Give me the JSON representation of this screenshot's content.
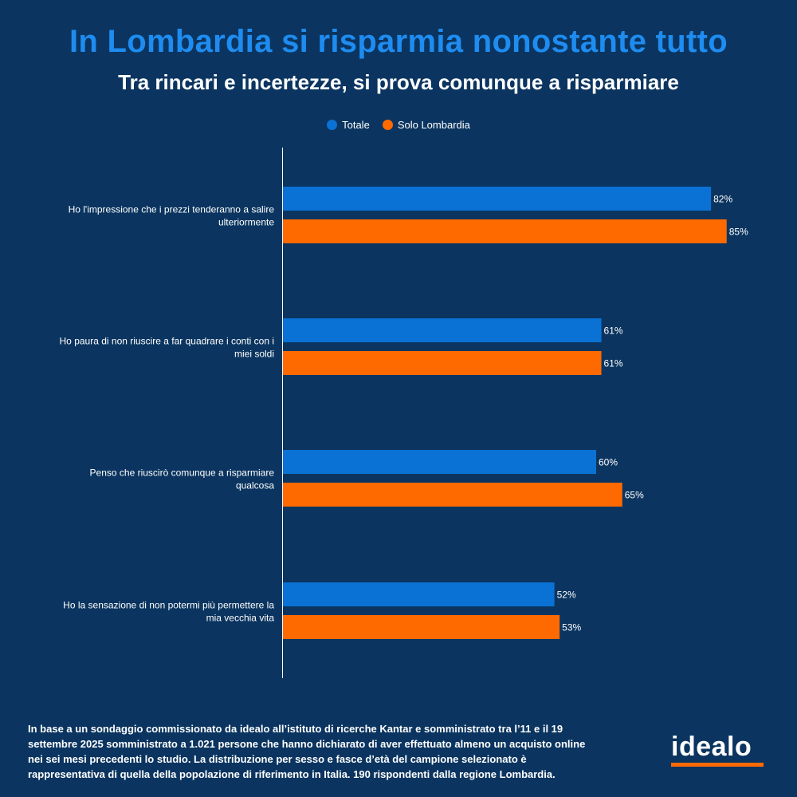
{
  "header": {
    "title": "In Lombardia si risparmia nonostante tutto",
    "subtitle": "Tra rincari e incertezze, si prova comunque a risparmiare"
  },
  "colors": {
    "background": "#0b3560",
    "series_totale": "#0a72d4",
    "series_lombardia": "#ff6a00",
    "title": "#1e8cf0"
  },
  "chart_data": {
    "type": "bar",
    "orientation": "horizontal",
    "title": "In Lombardia si risparmia nonostante tutto",
    "subtitle": "Tra rincari e incertezze, si prova comunque a risparmiare",
    "xlim": [
      0,
      100
    ],
    "grid": false,
    "legend": "top-center",
    "categories": [
      "Ho l'impressione che i prezzi tenderanno a salire ulteriormente",
      "Ho paura di non riuscire a far quadrare i conti con i miei soldi",
      "Penso che riuscirò comunque a risparmiare qualcosa",
      "Ho la sensazione di non potermi più permettere la mia vecchia vita"
    ],
    "category_lines": [
      [
        "Ho l'impressione che i prezzi tenderanno a salire",
        "ulteriormente"
      ],
      [
        "Ho paura di non riuscire a far quadrare i conti con i",
        "miei soldi"
      ],
      [
        "Penso che riuscirò comunque a risparmiare",
        "qualcosa"
      ],
      [
        "Ho la sensazione di non potermi più permettere la",
        "mia vecchia vita"
      ]
    ],
    "series": [
      {
        "name": "Totale",
        "color": "#0a72d4",
        "values": [
          82,
          61,
          60,
          52
        ],
        "labels": [
          "82%",
          "61%",
          "60%",
          "52%"
        ]
      },
      {
        "name": "Solo Lombardia",
        "color": "#ff6a00",
        "values": [
          85,
          61,
          65,
          53
        ],
        "labels": [
          "85%",
          "61%",
          "65%",
          "53%"
        ]
      }
    ]
  },
  "footnote": "In base a un sondaggio commissionato da idealo all’istituto di ricerche Kantar e somministrato tra l’11 e il 19 settembre 2025 somministrato a 1.021 persone che hanno dichiarato di aver effettuato almeno un acquisto online nei sei mesi precedenti lo studio. La distribuzione per sesso e fasce d’età del campione selezionato è rappresentativa di quella della popolazione di riferimento in Italia. 190 rispondenti dalla regione Lombardia.",
  "logo": {
    "text": "idealo"
  }
}
